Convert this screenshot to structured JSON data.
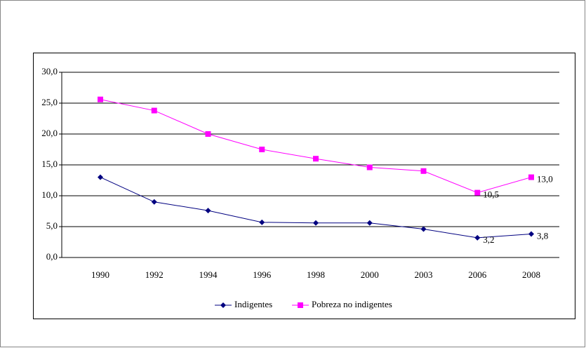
{
  "chart_data": {
    "type": "line",
    "categories": [
      "1990",
      "1992",
      "1994",
      "1996",
      "1998",
      "2000",
      "2003",
      "2006",
      "2008"
    ],
    "series": [
      {
        "name": "Indigentes",
        "color": "#000080",
        "marker": "diamond",
        "values": [
          13.0,
          9.0,
          7.6,
          5.7,
          5.6,
          5.6,
          4.6,
          3.2,
          3.8
        ],
        "value_labels": [
          null,
          null,
          null,
          null,
          null,
          null,
          null,
          "3,2",
          "3,8"
        ]
      },
      {
        "name": "Pobreza no indigentes",
        "color": "#ff00ff",
        "marker": "square",
        "values": [
          25.6,
          23.8,
          20.0,
          17.5,
          16.0,
          14.6,
          14.0,
          10.5,
          13.0
        ],
        "value_labels": [
          null,
          null,
          null,
          null,
          null,
          null,
          null,
          "10,5",
          "13,0"
        ]
      }
    ],
    "ylim": [
      0,
      30
    ],
    "yticks": [
      {
        "value": 0,
        "label": "0,0"
      },
      {
        "value": 5,
        "label": "5,0"
      },
      {
        "value": 10,
        "label": "10,0"
      },
      {
        "value": 15,
        "label": "15,0"
      },
      {
        "value": 20,
        "label": "20,0"
      },
      {
        "value": 25,
        "label": "25,0"
      },
      {
        "value": 30,
        "label": "30,0"
      }
    ],
    "grid": true,
    "legend": "bottom"
  }
}
